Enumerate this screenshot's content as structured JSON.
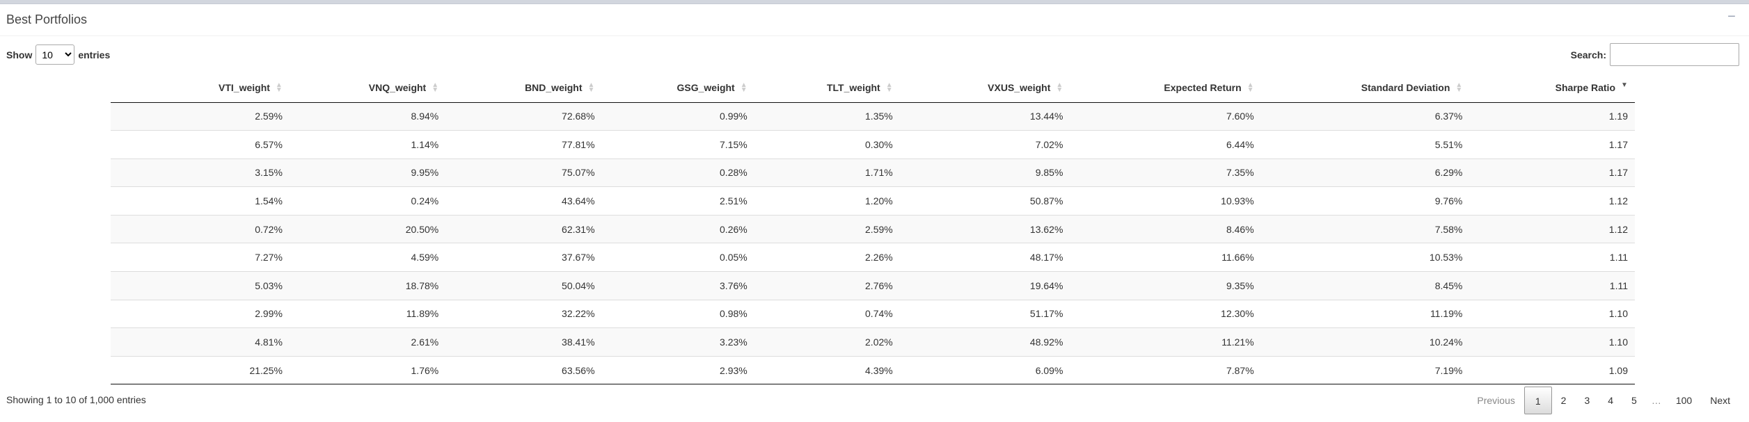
{
  "panel": {
    "title": "Best Portfolios",
    "collapse_symbol": "−"
  },
  "length_control": {
    "prefix": "Show",
    "selected": "10",
    "suffix": "entries"
  },
  "search": {
    "label": "Search:",
    "value": ""
  },
  "table": {
    "columns": [
      "VTI_weight",
      "VNQ_weight",
      "BND_weight",
      "GSG_weight",
      "TLT_weight",
      "VXUS_weight",
      "Expected Return",
      "Standard Deviation",
      "Sharpe Ratio"
    ],
    "rows": [
      [
        "2.59%",
        "8.94%",
        "72.68%",
        "0.99%",
        "1.35%",
        "13.44%",
        "7.60%",
        "6.37%",
        "1.19"
      ],
      [
        "6.57%",
        "1.14%",
        "77.81%",
        "7.15%",
        "0.30%",
        "7.02%",
        "6.44%",
        "5.51%",
        "1.17"
      ],
      [
        "3.15%",
        "9.95%",
        "75.07%",
        "0.28%",
        "1.71%",
        "9.85%",
        "7.35%",
        "6.29%",
        "1.17"
      ],
      [
        "1.54%",
        "0.24%",
        "43.64%",
        "2.51%",
        "1.20%",
        "50.87%",
        "10.93%",
        "9.76%",
        "1.12"
      ],
      [
        "0.72%",
        "20.50%",
        "62.31%",
        "0.26%",
        "2.59%",
        "13.62%",
        "8.46%",
        "7.58%",
        "1.12"
      ],
      [
        "7.27%",
        "4.59%",
        "37.67%",
        "0.05%",
        "2.26%",
        "48.17%",
        "11.66%",
        "10.53%",
        "1.11"
      ],
      [
        "5.03%",
        "18.78%",
        "50.04%",
        "3.76%",
        "2.76%",
        "19.64%",
        "9.35%",
        "8.45%",
        "1.11"
      ],
      [
        "2.99%",
        "11.89%",
        "32.22%",
        "0.98%",
        "0.74%",
        "51.17%",
        "12.30%",
        "11.19%",
        "1.10"
      ],
      [
        "4.81%",
        "2.61%",
        "38.41%",
        "3.23%",
        "2.02%",
        "48.92%",
        "11.21%",
        "10.24%",
        "1.10"
      ],
      [
        "21.25%",
        "1.76%",
        "63.56%",
        "2.93%",
        "4.39%",
        "6.09%",
        "7.87%",
        "7.19%",
        "1.09"
      ]
    ],
    "sorted_column": "Sharpe Ratio",
    "sort_direction": "descending"
  },
  "info": "Showing 1 to 10 of 1,000 entries",
  "pagination": {
    "previous": "Previous",
    "pages": [
      "1",
      "2",
      "3",
      "4",
      "5"
    ],
    "ellipsis": "…",
    "last": "100",
    "next": "Next",
    "current": "1"
  }
}
